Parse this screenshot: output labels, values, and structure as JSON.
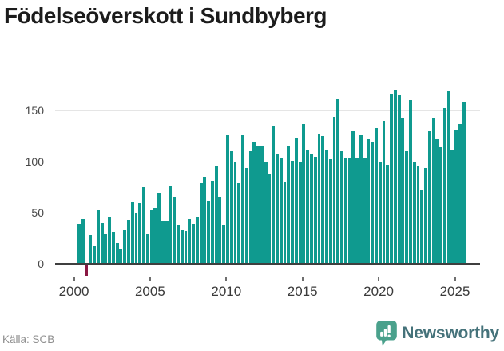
{
  "title": "Födelseöverskott i Sundbyberg",
  "footer": {
    "source": "Källa: SCB",
    "logo_text": "Newsworthy"
  },
  "colors": {
    "bar": "#0f9a8f",
    "bar_negative": "#8a1843",
    "grid": "#e5e5e5",
    "axis_line": "#3f3f3f",
    "axis_text": "#3a3a3a",
    "y_axis_text": "#474747",
    "muted_text": "#8e8e8e",
    "logo_badge": "#4aa18c",
    "logo_text": "#45727a"
  },
  "chart_data": {
    "type": "bar",
    "title": "Födelseöverskott i Sundbyberg",
    "xlabel": "",
    "ylabel": "",
    "source": "Källa: SCB",
    "ylim": [
      -25,
      180
    ],
    "grid": true,
    "gridline_values": [
      50,
      100,
      150
    ],
    "y_ticks": [
      0,
      50,
      100,
      150
    ],
    "x_tick_labels": [
      "2000",
      "2005",
      "2010",
      "2015",
      "2020",
      "2025"
    ],
    "period": "quarterly",
    "x": [
      "2000-Q2",
      "2000-Q3",
      "2000-Q4",
      "2001-Q1",
      "2001-Q2",
      "2001-Q3",
      "2001-Q4",
      "2002-Q1",
      "2002-Q2",
      "2002-Q3",
      "2002-Q4",
      "2003-Q1",
      "2003-Q2",
      "2003-Q3",
      "2003-Q4",
      "2004-Q1",
      "2004-Q2",
      "2004-Q3",
      "2004-Q4",
      "2005-Q1",
      "2005-Q2",
      "2005-Q3",
      "2005-Q4",
      "2006-Q1",
      "2006-Q2",
      "2006-Q3",
      "2006-Q4",
      "2007-Q1",
      "2007-Q2",
      "2007-Q3",
      "2007-Q4",
      "2008-Q1",
      "2008-Q2",
      "2008-Q3",
      "2008-Q4",
      "2009-Q1",
      "2009-Q2",
      "2009-Q3",
      "2009-Q4",
      "2010-Q1",
      "2010-Q2",
      "2010-Q3",
      "2010-Q4",
      "2011-Q1",
      "2011-Q2",
      "2011-Q3",
      "2011-Q4",
      "2012-Q1",
      "2012-Q2",
      "2012-Q3",
      "2012-Q4",
      "2013-Q1",
      "2013-Q2",
      "2013-Q3",
      "2013-Q4",
      "2014-Q1",
      "2014-Q2",
      "2014-Q3",
      "2014-Q4",
      "2015-Q1",
      "2015-Q2",
      "2015-Q3",
      "2015-Q4",
      "2016-Q1",
      "2016-Q2",
      "2016-Q3",
      "2016-Q4",
      "2017-Q1",
      "2017-Q2",
      "2017-Q3",
      "2017-Q4",
      "2018-Q1",
      "2018-Q2",
      "2018-Q3",
      "2018-Q4",
      "2019-Q1",
      "2019-Q2",
      "2019-Q3",
      "2019-Q4",
      "2020-Q1",
      "2020-Q2",
      "2020-Q3",
      "2020-Q4",
      "2021-Q1",
      "2021-Q2",
      "2021-Q3",
      "2021-Q4",
      "2022-Q1",
      "2022-Q2",
      "2022-Q3",
      "2022-Q4",
      "2023-Q1",
      "2023-Q2",
      "2023-Q3",
      "2023-Q4",
      "2024-Q1",
      "2024-Q2",
      "2024-Q3",
      "2024-Q4",
      "2025-Q1",
      "2025-Q2",
      "2025-Q3"
    ],
    "values": [
      39,
      44,
      -11,
      28,
      17,
      52,
      40,
      29,
      46,
      31,
      20,
      14,
      33,
      43,
      60,
      50,
      59,
      75,
      29,
      52,
      55,
      69,
      42,
      42,
      76,
      66,
      38,
      33,
      32,
      44,
      39,
      46,
      79,
      85,
      62,
      81,
      96,
      66,
      38,
      126,
      110,
      99,
      79,
      126,
      94,
      110,
      119,
      116,
      115,
      100,
      88,
      134,
      108,
      103,
      80,
      115,
      101,
      123,
      100,
      137,
      112,
      108,
      105,
      127,
      125,
      111,
      102,
      144,
      161,
      110,
      104,
      103,
      130,
      104,
      126,
      104,
      122,
      119,
      133,
      99,
      140,
      97,
      166,
      170,
      165,
      142,
      110,
      160,
      99,
      96,
      72,
      94,
      130,
      142,
      122,
      114,
      152,
      169,
      112,
      131,
      137,
      158
    ]
  }
}
